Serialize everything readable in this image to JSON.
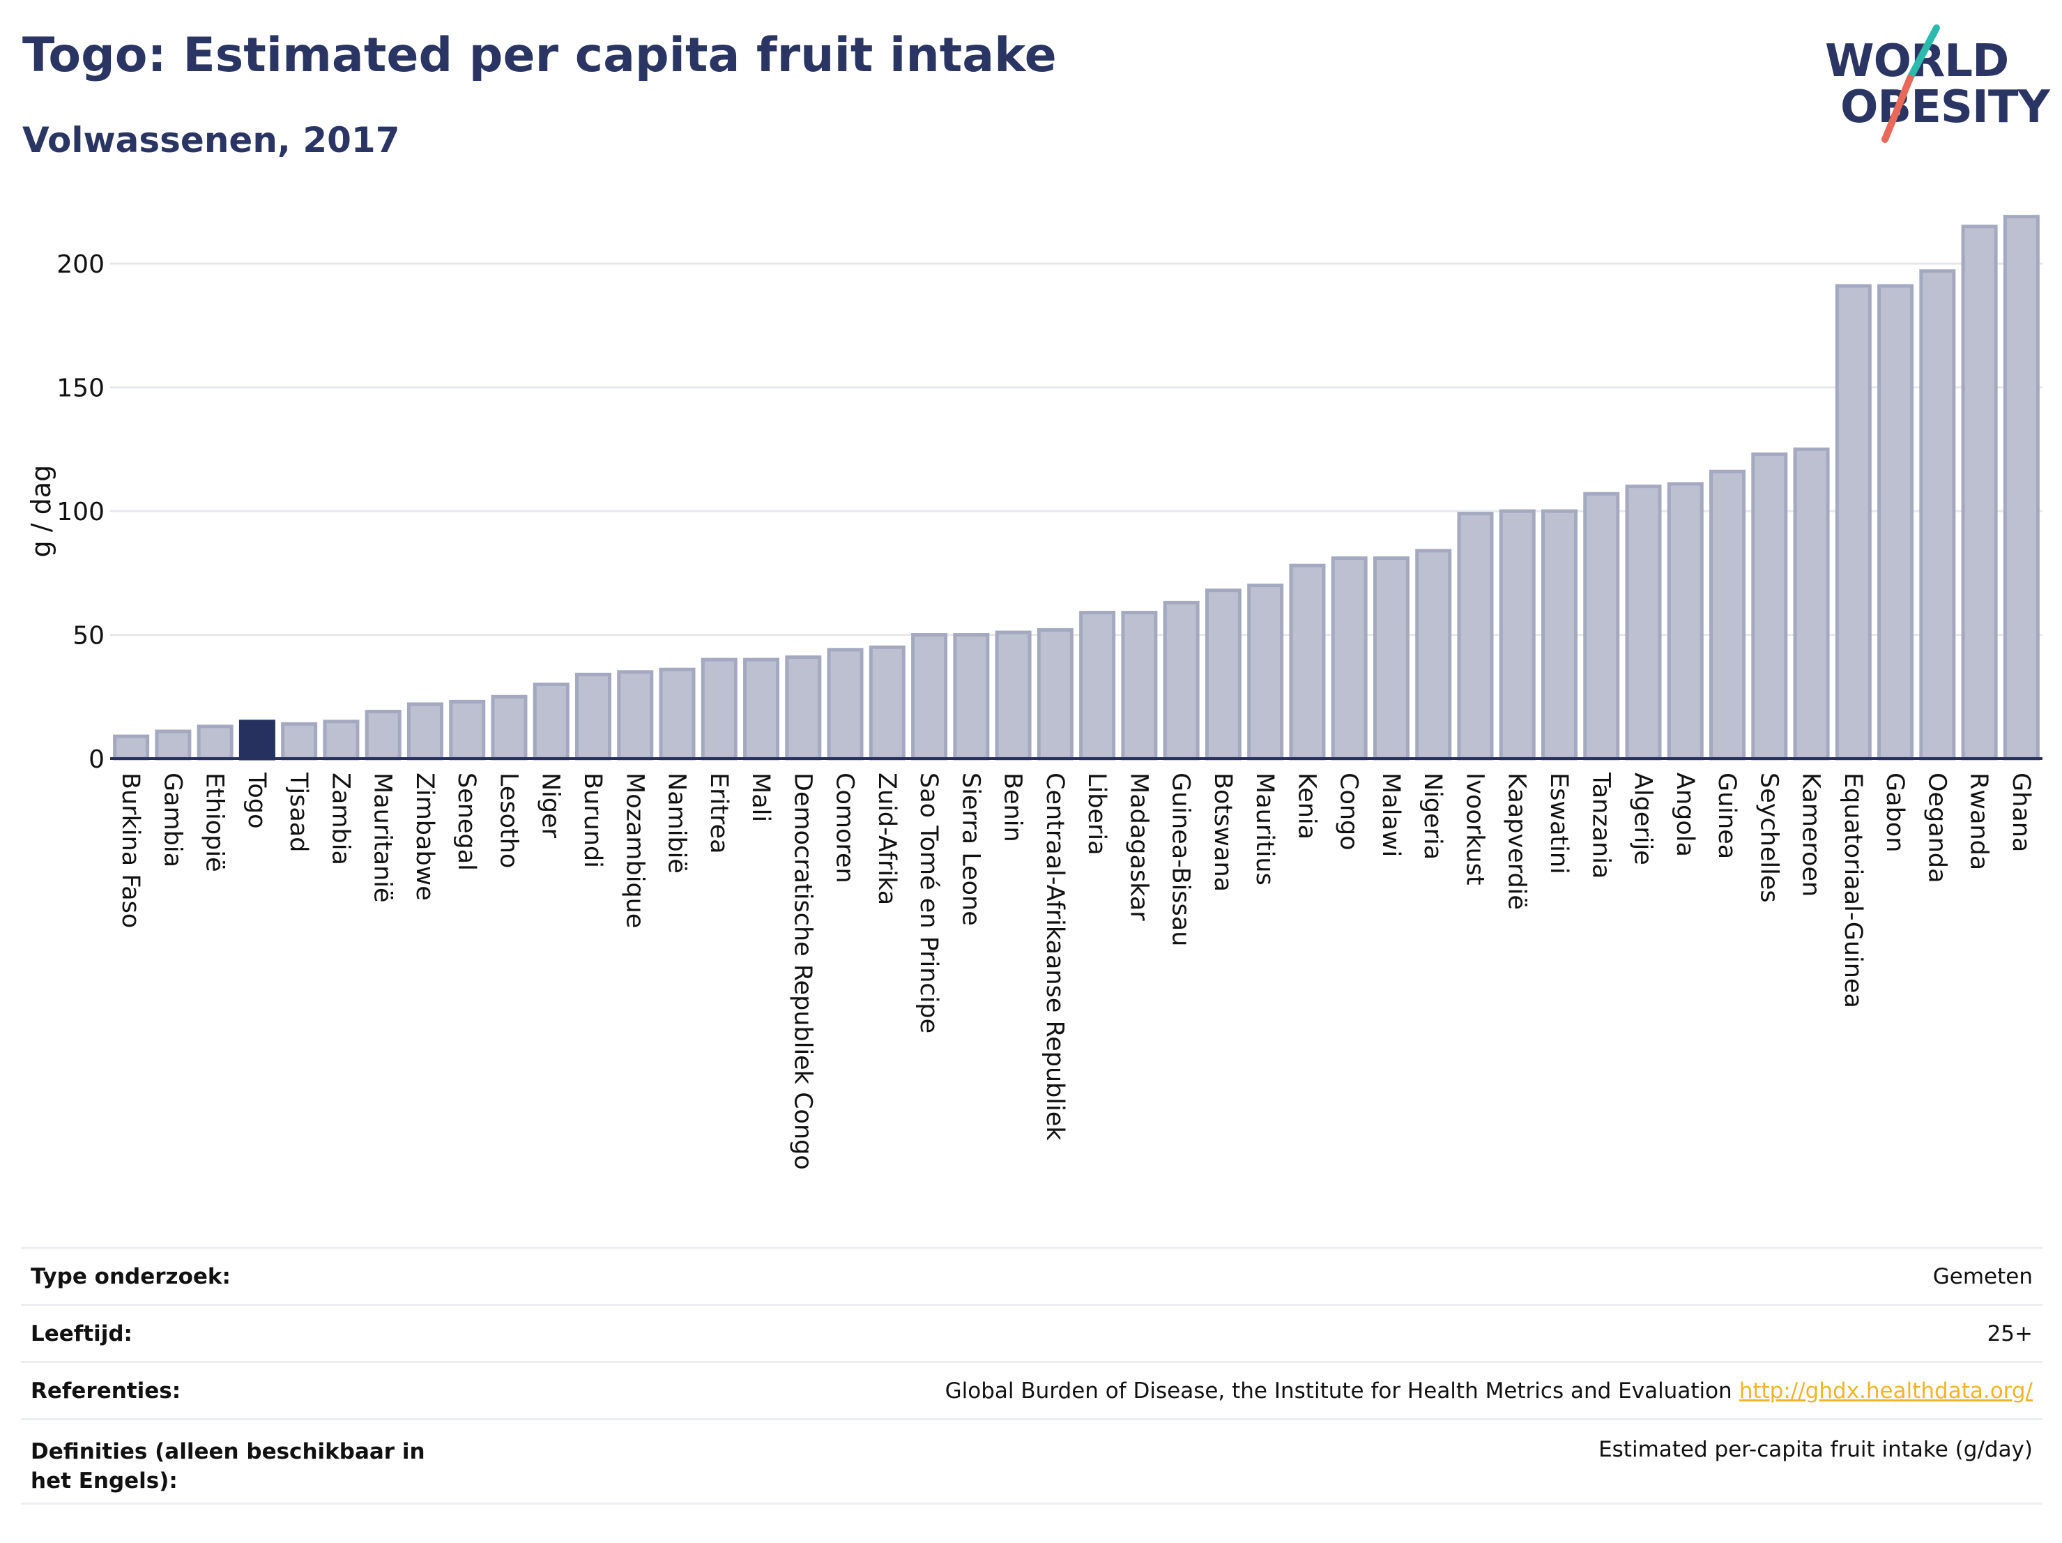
{
  "header": {
    "title": "Togo: Estimated per capita fruit intake",
    "subtitle": "Volwassenen, 2017"
  },
  "logo": {
    "line1": "WORLD",
    "line2": "OBESITY",
    "accent_colors": [
      "#2bbbad",
      "#e8685a"
    ]
  },
  "colors": {
    "bar_fill": "#bcc0d0",
    "bar_stroke": "#a4a9c0",
    "highlight": "#263160",
    "axis": "#263160",
    "grid": "#e6e8ee",
    "text": "#111111",
    "link": "#f0b428"
  },
  "chart_data": {
    "type": "bar",
    "ylabel": "g / dag",
    "ylim": [
      0,
      222
    ],
    "yticks": [
      0,
      50,
      100,
      150,
      200
    ],
    "grid": true,
    "highlight": "Togo",
    "categories": [
      "Burkina Faso",
      "Gambia",
      "Ethiopië",
      "Togo",
      "Tjsaad",
      "Zambia",
      "Mauritanië",
      "Zimbabwe",
      "Senegal",
      "Lesotho",
      "Niger",
      "Burundi",
      "Mozambique",
      "Namibië",
      "Eritrea",
      "Mali",
      "Democratische Republiek Congo",
      "Comoren",
      "Zuid-Afrika",
      "Sao Tomé en Principe",
      "Sierra Leone",
      "Benin",
      "Centraal-Afrikaanse Republiek",
      "Liberia",
      "Madagaskar",
      "Guinea-Bissau",
      "Botswana",
      "Mauritius",
      "Kenia",
      "Congo",
      "Malawi",
      "Nigeria",
      "Ivoorkust",
      "Kaapverdië",
      "Eswatini",
      "Tanzania",
      "Algerije",
      "Angola",
      "Guinea",
      "Seychelles",
      "Kameroen",
      "Equatoriaal-Guinea",
      "Gabon",
      "Oeganda",
      "Rwanda",
      "Ghana"
    ],
    "values": [
      9,
      11,
      13,
      15,
      14,
      15,
      19,
      22,
      23,
      25,
      30,
      34,
      35,
      36,
      40,
      40,
      41,
      44,
      45,
      50,
      50,
      51,
      52,
      59,
      59,
      63,
      68,
      70,
      78,
      81,
      81,
      84,
      99,
      100,
      100,
      107,
      110,
      111,
      116,
      123,
      125,
      191,
      191,
      197,
      215,
      219
    ]
  },
  "info": [
    {
      "label": "Type onderzoek:",
      "value": "Gemeten"
    },
    {
      "label": "Leeftijd:",
      "value": "25+"
    },
    {
      "label": "Referenties:",
      "value": "Global Burden of Disease, the Institute for Health Metrics and Evaluation",
      "link": "http://ghdx.healthdata.org/"
    },
    {
      "label": "Definities (alleen beschikbaar in het Engels):",
      "value": "Estimated per-capita fruit intake (g/day)"
    }
  ]
}
